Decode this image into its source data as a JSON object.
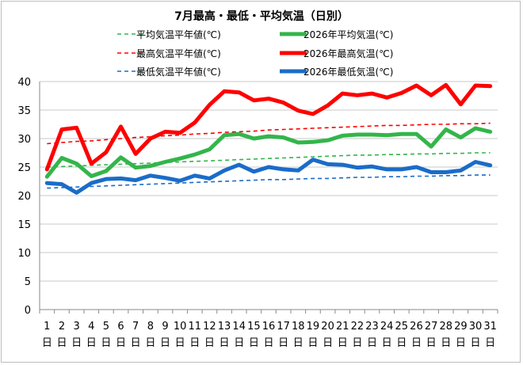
{
  "chart_data": {
    "type": "line",
    "title": "7月最高・最低・平均気温（日別）",
    "xlabel": "",
    "ylabel": "",
    "ylim": [
      0,
      40
    ],
    "yticks": [
      0,
      5,
      10,
      15,
      20,
      25,
      30,
      35,
      40
    ],
    "grid": true,
    "legend_position": "top",
    "categories": [
      "1",
      "2",
      "3",
      "4",
      "5",
      "6",
      "7",
      "8",
      "9",
      "10",
      "11",
      "12",
      "13",
      "14",
      "15",
      "16",
      "17",
      "18",
      "19",
      "20",
      "21",
      "22",
      "23",
      "24",
      "25",
      "26",
      "27",
      "28",
      "29",
      "30",
      "31"
    ],
    "category_suffix": "日",
    "series": [
      {
        "name": "平均気温平年値(℃)",
        "color": "#33b54a",
        "style": "dashed",
        "values": [
          25.0,
          25.1,
          25.2,
          25.3,
          25.4,
          25.5,
          25.6,
          25.7,
          25.8,
          25.9,
          26.0,
          26.1,
          26.2,
          26.3,
          26.4,
          26.5,
          26.6,
          26.7,
          26.8,
          26.9,
          27.0,
          27.1,
          27.1,
          27.2,
          27.2,
          27.3,
          27.3,
          27.4,
          27.4,
          27.5,
          27.5
        ]
      },
      {
        "name": "2026年平均気温(℃)",
        "color": "#33b54a",
        "style": "solid",
        "values": [
          23.3,
          26.6,
          25.6,
          23.4,
          24.3,
          26.7,
          24.9,
          25.2,
          25.9,
          26.5,
          27.2,
          28.1,
          30.6,
          30.8,
          30.0,
          30.4,
          30.2,
          29.3,
          29.4,
          29.7,
          30.5,
          30.7,
          30.7,
          30.6,
          30.8,
          30.8,
          28.6,
          31.6,
          30.2,
          31.8,
          31.2
        ]
      },
      {
        "name": "最高気温平年値(℃)",
        "color": "#ff0000",
        "style": "dashed",
        "values": [
          29.1,
          29.3,
          29.5,
          29.6,
          29.8,
          30.0,
          30.2,
          30.3,
          30.5,
          30.6,
          30.8,
          30.9,
          31.1,
          31.2,
          31.3,
          31.5,
          31.6,
          31.7,
          31.8,
          31.9,
          32.0,
          32.1,
          32.2,
          32.3,
          32.3,
          32.4,
          32.5,
          32.5,
          32.6,
          32.6,
          32.7
        ]
      },
      {
        "name": "2026年最高気温(℃)",
        "color": "#ff0000",
        "style": "solid",
        "values": [
          24.6,
          31.6,
          31.9,
          25.6,
          27.6,
          32.1,
          27.3,
          30.0,
          31.2,
          31.0,
          32.8,
          35.9,
          38.3,
          38.1,
          36.7,
          37.0,
          36.3,
          34.9,
          34.3,
          35.8,
          37.9,
          37.6,
          37.9,
          37.2,
          38.0,
          39.3,
          37.6,
          39.4,
          36.0,
          39.3,
          39.2
        ]
      },
      {
        "name": "最低気温平年値(℃)",
        "color": "#1a6cc8",
        "style": "dashed",
        "values": [
          21.3,
          21.4,
          21.5,
          21.6,
          21.7,
          21.8,
          21.9,
          22.0,
          22.1,
          22.2,
          22.3,
          22.4,
          22.5,
          22.6,
          22.7,
          22.8,
          22.8,
          22.9,
          23.0,
          23.0,
          23.1,
          23.2,
          23.2,
          23.3,
          23.3,
          23.4,
          23.4,
          23.5,
          23.5,
          23.6,
          23.6
        ]
      },
      {
        "name": "2026年最低気温(℃)",
        "color": "#1a6cc8",
        "style": "solid",
        "values": [
          22.2,
          22.0,
          20.5,
          22.2,
          22.9,
          23.0,
          22.7,
          23.5,
          23.1,
          22.6,
          23.5,
          23.0,
          24.4,
          25.4,
          24.2,
          25.0,
          24.6,
          24.4,
          26.3,
          25.5,
          25.4,
          24.9,
          25.1,
          24.6,
          24.6,
          25.0,
          24.1,
          24.1,
          24.4,
          25.9,
          25.3
        ]
      }
    ]
  }
}
